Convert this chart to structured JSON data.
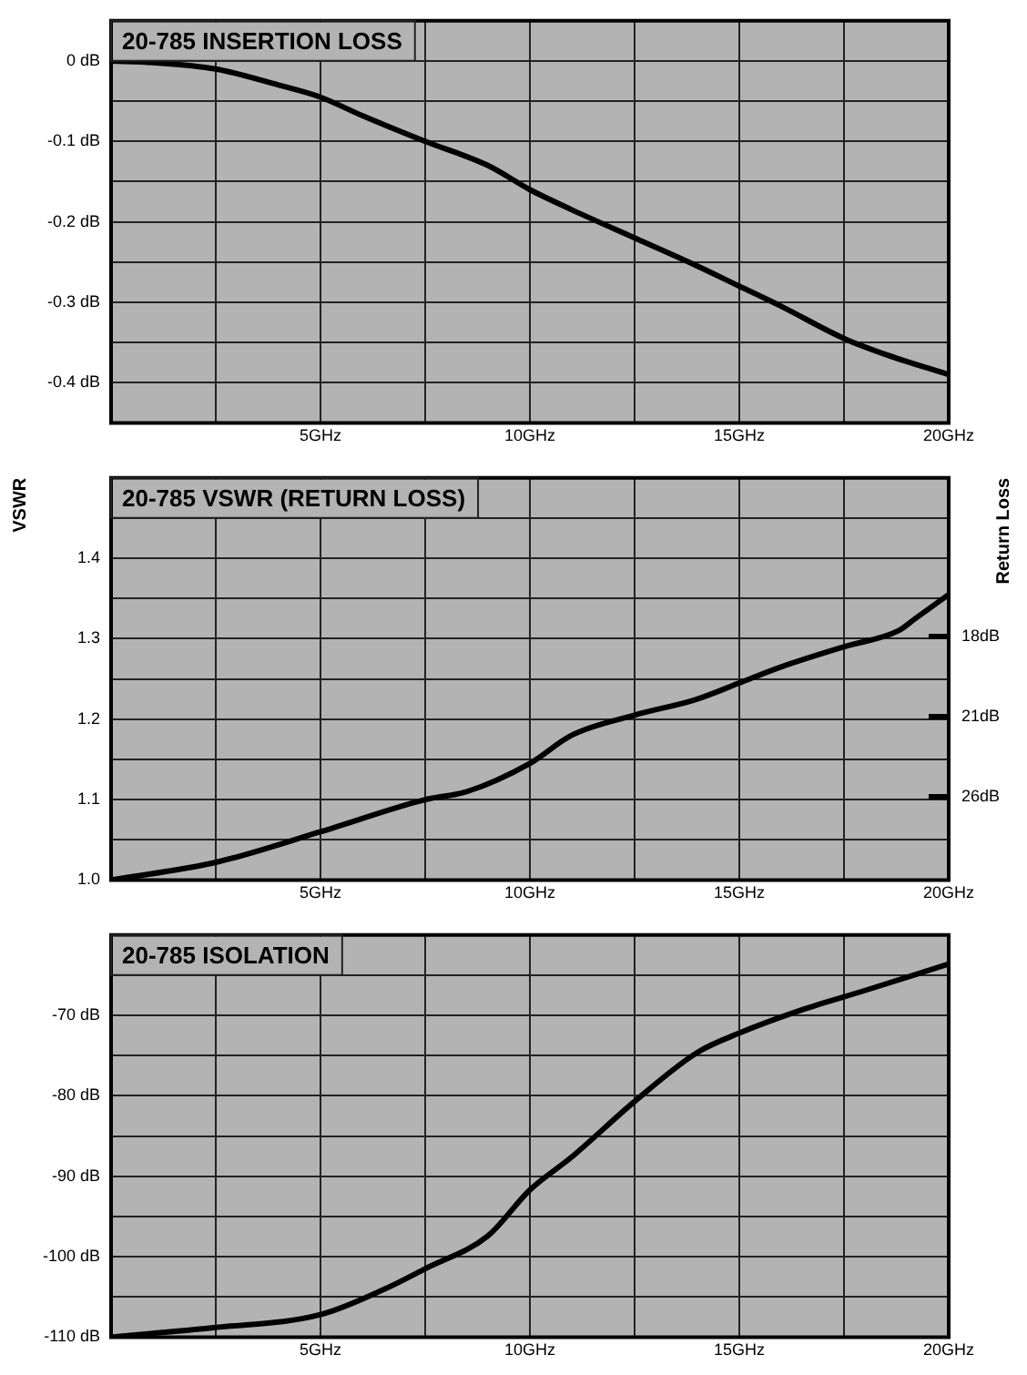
{
  "chart_data": [
    {
      "type": "line",
      "title": "20-785 INSERTION LOSS",
      "x": [
        0,
        1,
        2.5,
        4,
        5,
        6,
        7.5,
        9,
        10,
        11,
        12.5,
        14,
        15,
        16,
        17.5,
        18.5,
        20
      ],
      "series": [
        {
          "color": "#000000",
          "values": [
            0,
            -0.002,
            -0.01,
            -0.03,
            -0.045,
            -0.068,
            -0.1,
            -0.13,
            -0.16,
            -0.185,
            -0.22,
            -0.255,
            -0.28,
            -0.305,
            -0.345,
            -0.365,
            -0.39
          ]
        }
      ],
      "xlim": [
        0,
        20
      ],
      "xticks": [
        {
          "value": 2.5,
          "label": null
        },
        {
          "value": 5,
          "label": "5GHz"
        },
        {
          "value": 7.5,
          "label": null
        },
        {
          "value": 10,
          "label": "10GHz"
        },
        {
          "value": 12.5,
          "label": null
        },
        {
          "value": 15,
          "label": "15GHz"
        },
        {
          "value": 17.5,
          "label": null
        },
        {
          "value": 20,
          "label": "20GHz"
        }
      ],
      "ylim": [
        -0.45,
        0.05
      ],
      "yticks": [
        {
          "value": -0.4,
          "label": "-0.4 dB"
        },
        {
          "value": -0.35,
          "label": null
        },
        {
          "value": -0.3,
          "label": "-0.3 dB"
        },
        {
          "value": -0.25,
          "label": null
        },
        {
          "value": -0.2,
          "label": "-0.2 dB"
        },
        {
          "value": -0.15,
          "label": null
        },
        {
          "value": -0.1,
          "label": "-0.1 dB"
        },
        {
          "value": -0.05,
          "label": null
        },
        {
          "value": 0,
          "label": "0 dB"
        }
      ],
      "grid": true
    },
    {
      "type": "line",
      "title": "20-785 VSWR (RETURN LOSS)",
      "ylabel": "VSWR",
      "y2label": "Return Loss",
      "x": [
        0,
        2.5,
        5,
        7.5,
        8.5,
        10,
        11,
        12.5,
        14,
        15,
        16,
        17.5,
        18.8,
        19.2,
        20
      ],
      "series": [
        {
          "color": "#000000",
          "values": [
            1.0,
            1.022,
            1.06,
            1.1,
            1.11,
            1.145,
            1.18,
            1.205,
            1.225,
            1.245,
            1.265,
            1.29,
            1.31,
            1.325,
            1.355
          ]
        }
      ],
      "xlim": [
        0,
        20
      ],
      "xticks": [
        {
          "value": 2.5,
          "label": null
        },
        {
          "value": 5,
          "label": "5GHz"
        },
        {
          "value": 7.5,
          "label": null
        },
        {
          "value": 10,
          "label": "10GHz"
        },
        {
          "value": 12.5,
          "label": null
        },
        {
          "value": 15,
          "label": "15GHz"
        },
        {
          "value": 17.5,
          "label": null
        },
        {
          "value": 20,
          "label": "20GHz"
        }
      ],
      "ylim": [
        1.0,
        1.5
      ],
      "yticks": [
        {
          "value": 1.0,
          "label": "1.0"
        },
        {
          "value": 1.05,
          "label": null
        },
        {
          "value": 1.1,
          "label": "1.1"
        },
        {
          "value": 1.15,
          "label": null
        },
        {
          "value": 1.2,
          "label": "1.2"
        },
        {
          "value": 1.25,
          "label": null
        },
        {
          "value": 1.3,
          "label": "1.3"
        },
        {
          "value": 1.35,
          "label": null
        },
        {
          "value": 1.4,
          "label": "1.4"
        },
        {
          "value": 1.45,
          "label": null
        }
      ],
      "annotations": [
        "18dB",
        "21dB",
        "26dB"
      ],
      "grid": true
    },
    {
      "type": "line",
      "title": "20-785 ISOLATION",
      "x": [
        0,
        2.5,
        5,
        6.5,
        7.5,
        9,
        10,
        11,
        12.5,
        14,
        15,
        16.5,
        18,
        20
      ],
      "series": [
        {
          "color": "#000000",
          "values": [
            -110,
            -108.8,
            -107.2,
            -104.1,
            -101.5,
            -97.4,
            -91.7,
            -87.6,
            -80.7,
            -74.6,
            -72.2,
            -69.3,
            -66.9,
            -63.6
          ]
        }
      ],
      "xlim": [
        0,
        20
      ],
      "xticks": [
        {
          "value": 2.5,
          "label": null
        },
        {
          "value": 5,
          "label": "5GHz"
        },
        {
          "value": 7.5,
          "label": null
        },
        {
          "value": 10,
          "label": "10GHz"
        },
        {
          "value": 12.5,
          "label": null
        },
        {
          "value": 15,
          "label": "15GHz"
        },
        {
          "value": 17.5,
          "label": null
        },
        {
          "value": 20,
          "label": "20GHz"
        }
      ],
      "ylim": [
        -110,
        -60
      ],
      "yticks": [
        {
          "value": -110,
          "label": "-110 dB"
        },
        {
          "value": -105,
          "label": null
        },
        {
          "value": -100,
          "label": "-100 dB"
        },
        {
          "value": -95,
          "label": null
        },
        {
          "value": -90,
          "label": "-90 dB"
        },
        {
          "value": -85,
          "label": null
        },
        {
          "value": -80,
          "label": "-80 dB"
        },
        {
          "value": -75,
          "label": null
        },
        {
          "value": -70,
          "label": "-70 dB"
        },
        {
          "value": -65,
          "label": null
        }
      ],
      "grid": true
    }
  ]
}
